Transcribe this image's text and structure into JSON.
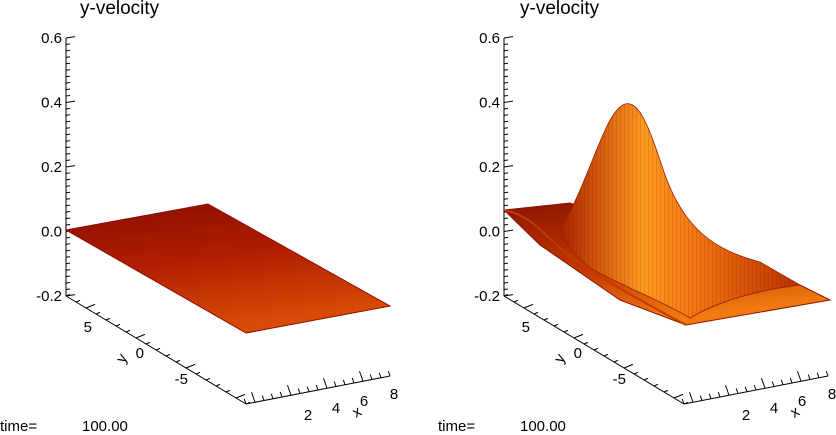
{
  "chart_data": [
    {
      "type": "surface",
      "title": "y-velocity",
      "zlabel": "",
      "xlabel": "x",
      "ylabel": "y",
      "z_ticks": [
        "0.6",
        "0.4",
        "0.2",
        "0.0",
        "-0.2"
      ],
      "y_ticks": [
        "5",
        "0",
        "-5"
      ],
      "x_ticks": [
        "2",
        "4",
        "6",
        "8"
      ],
      "zlim": [
        -0.2,
        0.6
      ],
      "surface": "flat plane at 0.0",
      "peak": 0.0,
      "colors": {
        "dark": "#8b0d00",
        "mid": "#c22800",
        "light": "#e8600a"
      },
      "time_label": "time=",
      "time_value": "100.00"
    },
    {
      "type": "surface",
      "title": "y-velocity",
      "zlabel": "",
      "xlabel": "x",
      "ylabel": "y",
      "z_ticks": [
        "0.6",
        "0.4",
        "0.2",
        "0.0",
        "-0.2"
      ],
      "y_ticks": [
        "5",
        "0",
        "-5"
      ],
      "x_ticks": [
        "2",
        "4",
        "6",
        "8"
      ],
      "zlim": [
        -0.2,
        0.6
      ],
      "surface": "gaussian bump",
      "peak": 0.4,
      "colors": {
        "dark": "#8b1500",
        "mid": "#d84800",
        "light": "#ff9a20"
      },
      "time_label": "time=",
      "time_value": "100.00"
    }
  ]
}
